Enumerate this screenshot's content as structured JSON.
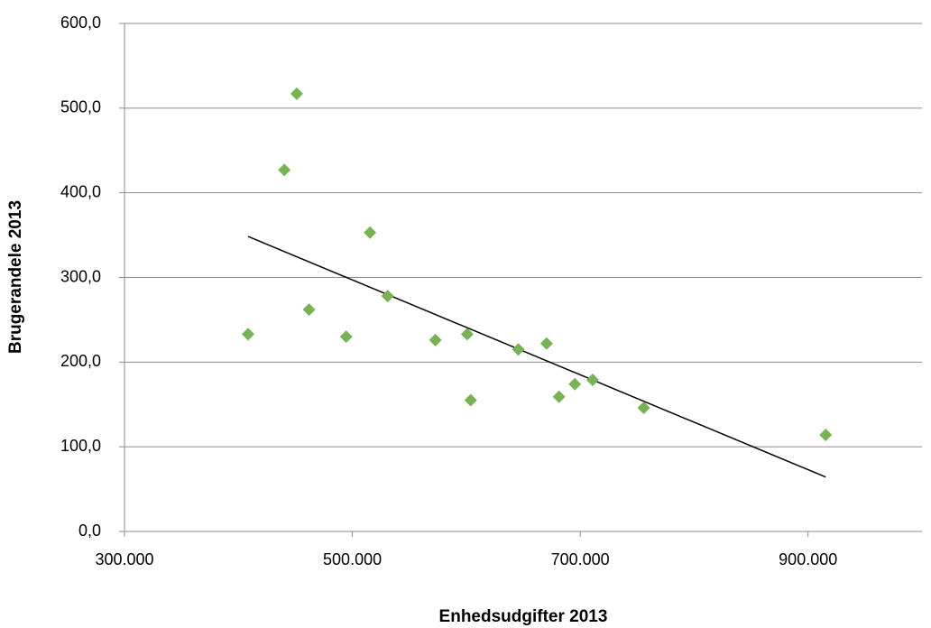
{
  "chart_data": {
    "type": "scatter",
    "x_label": "Enhedsudgifter 2013",
    "y_label": "Brugerandele 2013",
    "series": [
      {
        "color": "#77b255",
        "x": [
          408500,
          440300,
          451200,
          462000,
          494600,
          515500,
          531000,
          572900,
          600800,
          603900,
          645700,
          670500,
          681400,
          695300,
          710900,
          755800,
          915500
        ],
        "values": [
          233,
          427,
          517,
          262,
          230,
          353,
          278,
          226,
          233,
          155,
          215,
          222,
          159,
          174,
          179,
          146,
          114
        ]
      }
    ],
    "trendline": "linear",
    "xlim": [
      300000,
      1000000
    ],
    "xticks": [
      {
        "value": 300000,
        "label": "300.000"
      },
      {
        "value": 500000,
        "label": "500.000"
      },
      {
        "value": 700000,
        "label": "700.000"
      },
      {
        "value": 900000,
        "label": "900.000"
      }
    ],
    "ylim": [
      0,
      600
    ],
    "yticks": [
      {
        "value": 0,
        "label": "0,0"
      },
      {
        "value": 100,
        "label": "100,0"
      },
      {
        "value": 200,
        "label": "200,0"
      },
      {
        "value": 300,
        "label": "300,0"
      },
      {
        "value": 400,
        "label": "400,0"
      },
      {
        "value": 500,
        "label": "500,0"
      },
      {
        "value": 600,
        "label": "600,0"
      }
    ],
    "grid": true
  }
}
